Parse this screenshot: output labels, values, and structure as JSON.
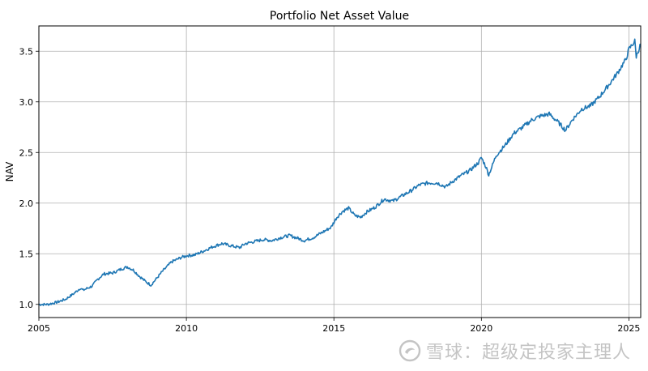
{
  "chart_data": {
    "type": "line",
    "title": "Portfolio Net Asset Value",
    "xlabel": "",
    "ylabel": "NAV",
    "xlim": [
      2005.0,
      2025.4
    ],
    "ylim": [
      0.87,
      3.75
    ],
    "xticks": [
      "2005",
      "2010",
      "2015",
      "2020",
      "2025"
    ],
    "yticks": [
      "1.0",
      "1.5",
      "2.0",
      "2.5",
      "3.0",
      "3.5"
    ],
    "grid": true,
    "line_color": "#1f77b4",
    "series": [
      {
        "name": "",
        "x": [
          2005.0,
          2005.3,
          2005.6,
          2005.9,
          2006.2,
          2006.4,
          2006.5,
          2006.8,
          2007.0,
          2007.2,
          2007.5,
          2007.8,
          2008.0,
          2008.2,
          2008.4,
          2008.6,
          2008.8,
          2009.0,
          2009.2,
          2009.5,
          2009.8,
          2010.0,
          2010.3,
          2010.6,
          2010.9,
          2011.2,
          2011.5,
          2011.8,
          2012.0,
          2012.3,
          2012.6,
          2012.9,
          2013.2,
          2013.5,
          2013.8,
          2014.0,
          2014.3,
          2014.6,
          2014.9,
          2015.1,
          2015.3,
          2015.5,
          2015.7,
          2015.9,
          2016.1,
          2016.4,
          2016.7,
          2017.0,
          2017.3,
          2017.6,
          2017.9,
          2018.2,
          2018.5,
          2018.8,
          2019.0,
          2019.3,
          2019.6,
          2019.9,
          2020.0,
          2020.15,
          2020.25,
          2020.5,
          2020.8,
          2021.1,
          2021.4,
          2021.7,
          2022.0,
          2022.3,
          2022.6,
          2022.85,
          2023.1,
          2023.4,
          2023.7,
          2024.0,
          2024.3,
          2024.6,
          2024.9,
          2025.0,
          2025.1,
          2025.2,
          2025.25,
          2025.4
        ],
        "values": [
          1.0,
          1.0,
          1.02,
          1.05,
          1.11,
          1.16,
          1.14,
          1.18,
          1.25,
          1.3,
          1.31,
          1.35,
          1.37,
          1.34,
          1.28,
          1.23,
          1.19,
          1.26,
          1.33,
          1.42,
          1.46,
          1.48,
          1.49,
          1.53,
          1.57,
          1.6,
          1.58,
          1.56,
          1.6,
          1.62,
          1.64,
          1.63,
          1.66,
          1.68,
          1.65,
          1.63,
          1.66,
          1.71,
          1.76,
          1.86,
          1.92,
          1.95,
          1.88,
          1.86,
          1.91,
          1.96,
          2.04,
          2.02,
          2.07,
          2.12,
          2.18,
          2.2,
          2.2,
          2.16,
          2.21,
          2.27,
          2.32,
          2.4,
          2.45,
          2.36,
          2.28,
          2.47,
          2.57,
          2.69,
          2.75,
          2.82,
          2.86,
          2.88,
          2.8,
          2.72,
          2.83,
          2.93,
          2.96,
          3.05,
          3.16,
          3.28,
          3.42,
          3.52,
          3.56,
          3.6,
          3.45,
          3.57
        ]
      }
    ]
  },
  "watermark": {
    "text": "雪球：超级定投家主理人",
    "icon": "snowball-logo-icon"
  }
}
